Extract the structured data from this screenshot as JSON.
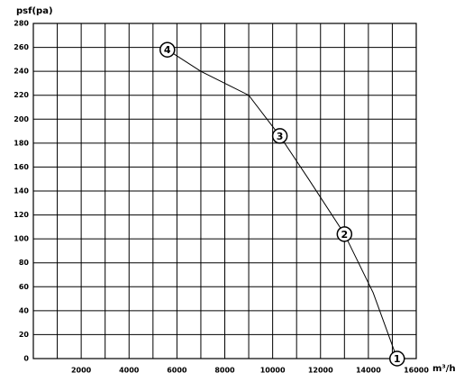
{
  "chart_data": {
    "type": "line",
    "y_label": "psf(pa)",
    "x_label": "m³/h",
    "xlim": [
      0,
      16000
    ],
    "ylim": [
      0,
      280
    ],
    "xticks": [
      2000,
      4000,
      6000,
      8000,
      10000,
      12000,
      14000,
      16000
    ],
    "x_minor_grid": [
      1000,
      3000,
      5000,
      7000,
      9000,
      11000,
      13000,
      15000
    ],
    "yticks": [
      0,
      20,
      40,
      60,
      80,
      100,
      120,
      140,
      160,
      180,
      200,
      220,
      240,
      260,
      280
    ],
    "grid": true,
    "color": "#000000",
    "x": [
      5600,
      7000,
      8000,
      9000,
      10300,
      11500,
      13000,
      14200,
      15200
    ],
    "values": [
      258,
      240,
      230,
      220,
      186,
      150,
      104,
      55,
      0
    ],
    "points": [
      {
        "label": "4",
        "x": 5600,
        "y": 258
      },
      {
        "label": "3",
        "x": 10300,
        "y": 186
      },
      {
        "label": "2",
        "x": 13000,
        "y": 104
      },
      {
        "label": "1",
        "x": 15200,
        "y": 0
      }
    ]
  }
}
